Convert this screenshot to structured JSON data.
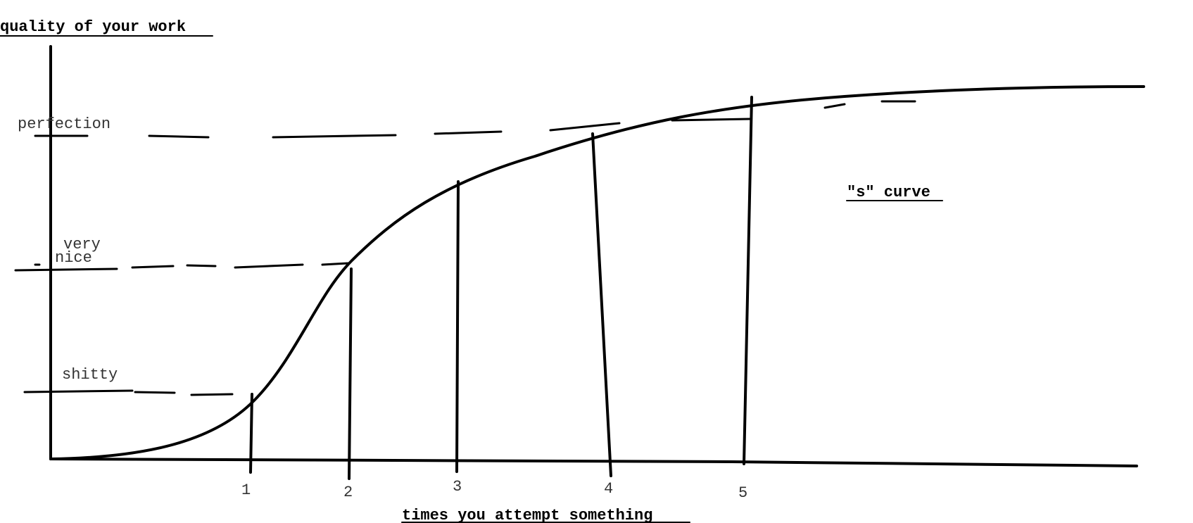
{
  "diagram": {
    "y_axis_label": "quality of your work",
    "x_axis_label": "times you attempt something",
    "curve_label": "\"s\" curve",
    "levels": {
      "perfection": "perfection",
      "very": "very",
      "nice": "nice",
      "shitty": "shitty"
    },
    "ticks": [
      "1",
      "2",
      "3",
      "4",
      "5"
    ]
  }
}
